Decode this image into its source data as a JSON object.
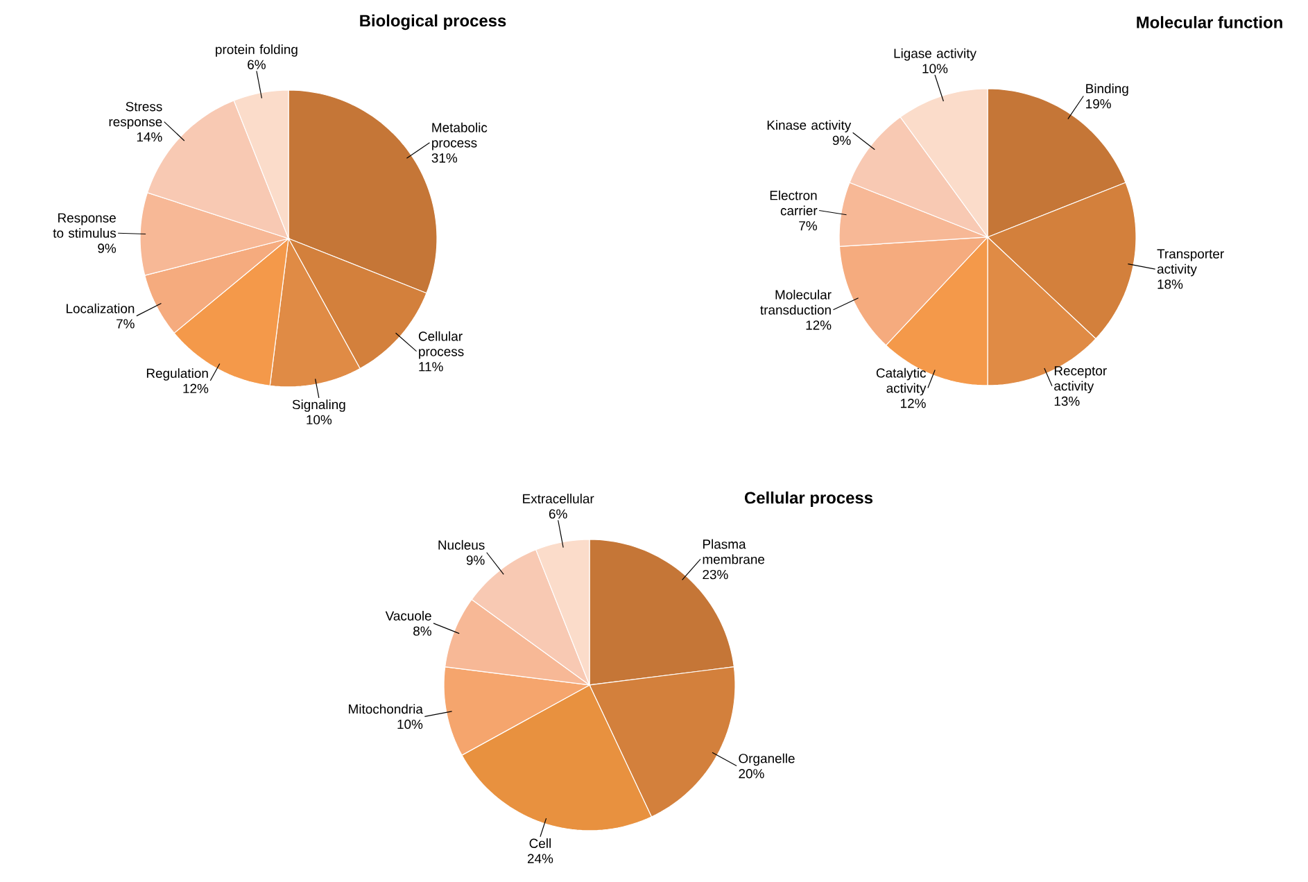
{
  "chart_data": [
    {
      "type": "pie",
      "title": "Biological process",
      "categories": [
        "Metabolic process",
        "Cellular process",
        "Signaling",
        "Regulation",
        "Localization",
        "Response to stimulus",
        "Stress response",
        "protein folding"
      ],
      "values": [
        31,
        11,
        10,
        12,
        7,
        9,
        14,
        6
      ],
      "value_labels": [
        "31%",
        "11%",
        "10%",
        "12%",
        "7%",
        "9%",
        "14%",
        "6%"
      ],
      "colors": [
        "#c57637",
        "#d3803c",
        "#e08b45",
        "#f4994a",
        "#f5ab7e",
        "#f7b896",
        "#f8c9b3",
        "#fbdcca"
      ]
    },
    {
      "type": "pie",
      "title": "Molecular function",
      "categories": [
        "Binding",
        "Transporter activity",
        "Receptor activity",
        "Catalytic activity",
        "Molecular transduction",
        "Electron carrier",
        "Kinase activity",
        "Ligase activity"
      ],
      "values": [
        19,
        18,
        13,
        12,
        12,
        7,
        9,
        10
      ],
      "value_labels": [
        "19%",
        "18%",
        "13%",
        "12%",
        "12%",
        "7%",
        "9%",
        "10%"
      ],
      "colors": [
        "#c57637",
        "#d3803c",
        "#e08b45",
        "#f4994a",
        "#f5ab7e",
        "#f7b896",
        "#f8c9b3",
        "#fbdcca"
      ]
    },
    {
      "type": "pie",
      "title": "Cellular process",
      "categories": [
        "Plasma membrane",
        "Organelle",
        "Cell",
        "Mitochondria",
        "Vacuole",
        "Nucleus",
        "Extracellular"
      ],
      "values": [
        23,
        20,
        24,
        10,
        8,
        9,
        6
      ],
      "value_labels": [
        "23%",
        "20%",
        "24%",
        "10%",
        "8%",
        "9%",
        "6%"
      ],
      "colors": [
        "#c57637",
        "#d3803c",
        "#e8913f",
        "#f5a56d",
        "#f7b896",
        "#f8c9b3",
        "#fbdcca"
      ]
    }
  ]
}
